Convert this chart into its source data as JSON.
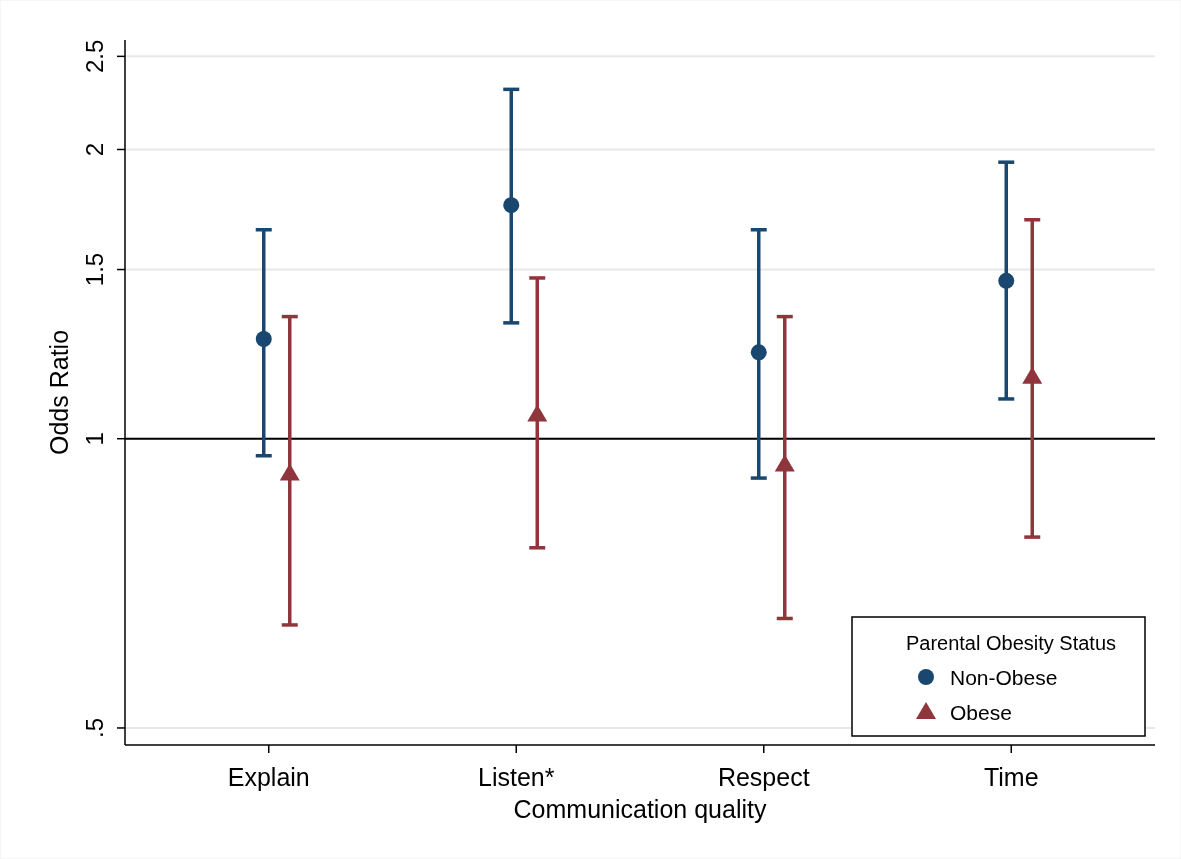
{
  "chart_data": {
    "type": "scatter",
    "xlabel": "Communication quality",
    "ylabel": "Odds Ratio",
    "legend_title": "Parental Obesity Status",
    "categories": [
      "Explain",
      "Listen*",
      "Respect",
      "Time"
    ],
    "series": [
      {
        "name": "Non-Obese",
        "color": "#1a476f",
        "marker": "circle",
        "values": [
          1.27,
          1.75,
          1.23,
          1.46
        ],
        "errors": [
          [
            0.96,
            1.65
          ],
          [
            1.32,
            2.31
          ],
          [
            0.91,
            1.65
          ],
          [
            1.1,
            1.94
          ]
        ]
      },
      {
        "name": "Obese",
        "color": "#90353b",
        "marker": "triangle",
        "values": [
          0.92,
          1.06,
          0.94,
          1.16
        ],
        "errors": [
          [
            0.64,
            1.34
          ],
          [
            0.77,
            1.47
          ],
          [
            0.65,
            1.34
          ],
          [
            0.79,
            1.69
          ]
        ]
      }
    ],
    "log": "y",
    "ylim": [
      0.48,
      2.6
    ],
    "yticks": [
      {
        "value": 0.5,
        "label": ".5"
      },
      1,
      1.5,
      2,
      2.5
    ],
    "grid": "y",
    "ref_lines": [
      {
        "axis": "y",
        "value": 1,
        "color": "#000000"
      }
    ],
    "legend": "bottom right"
  }
}
